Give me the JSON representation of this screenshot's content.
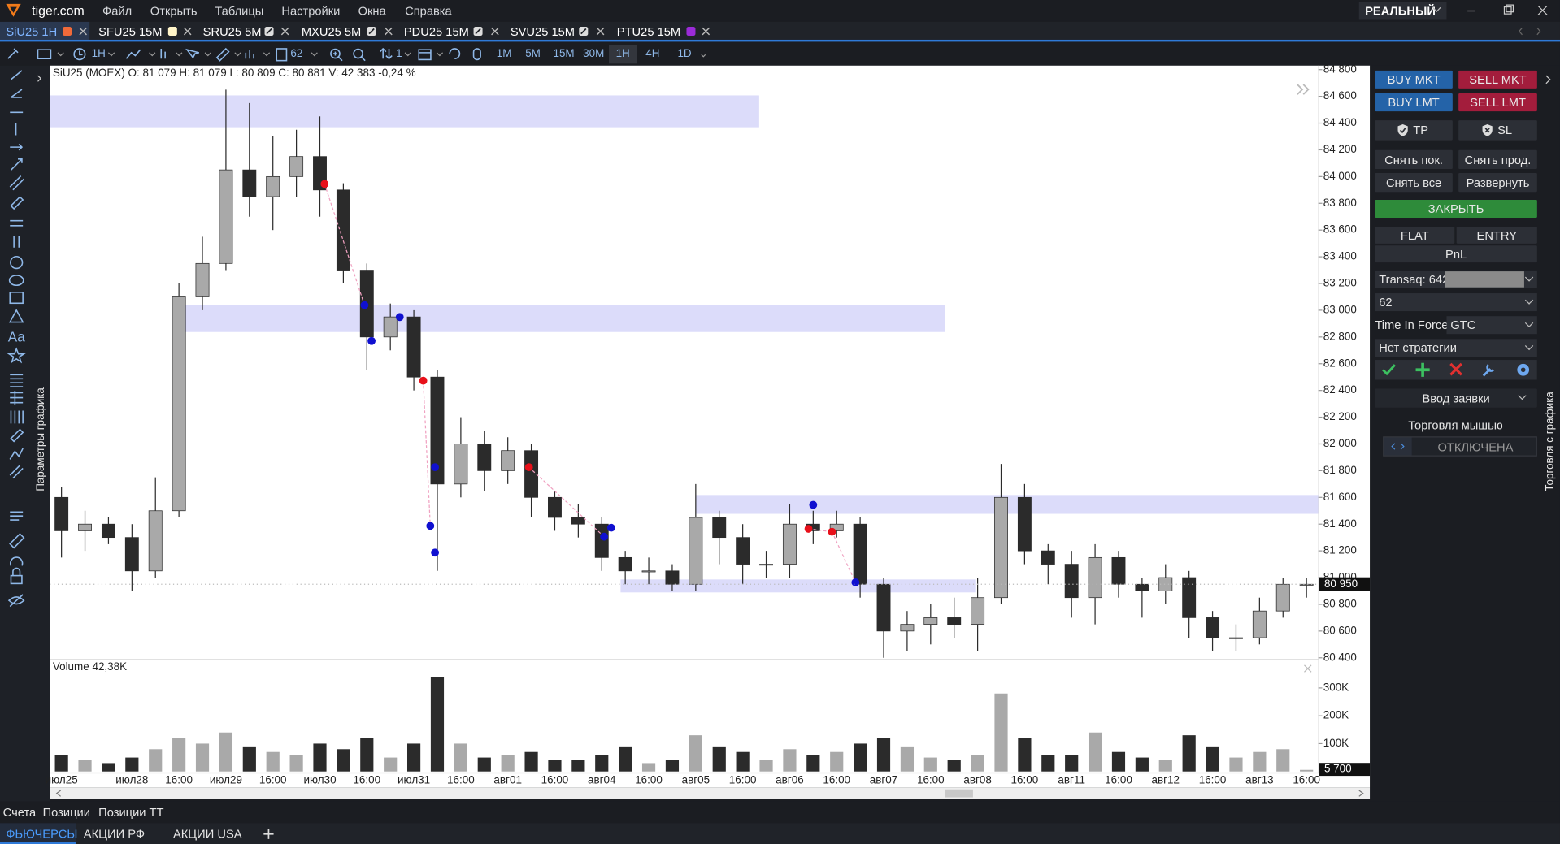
{
  "ui": {
    "brand": "tiger.com",
    "menu": [
      "Файл",
      "Открыть",
      "Таблицы",
      "Настройки",
      "Окна",
      "Справка"
    ],
    "account_mode": "РЕАЛЬНЫЙ",
    "tabs": [
      "SiU25 1H",
      "SFU25 15M",
      "SRU25 5M",
      "MXU25 5M",
      "PDU25 15M",
      "SVU25 15M",
      "PTU25 15M"
    ],
    "toolbar": {
      "timeframe": "1H",
      "count": "62",
      "lines": "1",
      "periods": [
        "1M",
        "5M",
        "15M",
        "30M",
        "1H",
        "4H",
        "1D"
      ]
    },
    "text_tool": "Aa",
    "left_label": "Параметры графика",
    "right_label": "Торговля с графика",
    "trade": {
      "buy_mkt": "BUY MKT",
      "sell_mkt": "SELL MKT",
      "buy_lmt": "BUY LMT",
      "sell_lmt": "SELL LMT",
      "tp": "TP",
      "sl": "SL",
      "cancel_buy": "Снять пок.",
      "cancel_sell": "Снять прод.",
      "cancel_all": "Снять все",
      "reverse": "Развернуть",
      "close": "ЗАКРЫТЬ",
      "flat": "FLAT",
      "entry": "ENTRY",
      "pnl": "PnL",
      "account": "Transaq: 642",
      "quantity": "62",
      "tif_label": "Time In Force",
      "tif": "GTC",
      "strategy": "Нет стратегии",
      "order_entry": "Ввод заявки",
      "mouse_trading": "Торговля мышью",
      "mouse_state": "ОТКЛЮЧЕНА"
    },
    "bottom_links": [
      "Счета",
      "Позиции",
      "Позиции ТТ"
    ],
    "bottom_tabs": [
      "ФЬЮЧЕРСЫ",
      "АКЦИИ РФ",
      "АКЦИИ USA"
    ]
  },
  "chart_data": {
    "type": "candlestick",
    "header": "SiU25 (MOEX) O: 81 079 H: 81 079 L: 80 809 C: 80 881 V: 42 383 -0,24 %",
    "categories": [
      "июл25",
      null,
      null,
      "июл28",
      null,
      "16:00",
      null,
      "июл29",
      null,
      "16:00",
      null,
      "июл30",
      null,
      "16:00",
      null,
      "июл31",
      null,
      "16:00",
      null,
      "авг01",
      null,
      "16:00",
      null,
      "авг04",
      null,
      "16:00",
      null,
      "авг05",
      null,
      "16:00",
      null,
      "авг06",
      null,
      "16:00",
      null,
      "авг07",
      null,
      "16:00",
      null,
      "авг08",
      null,
      "16:00",
      null,
      "авг11",
      null,
      "16:00",
      null,
      "авг12",
      null,
      "16:00",
      null,
      "авг13",
      null,
      "16:00"
    ],
    "open": [
      81600,
      81350,
      81400,
      81300,
      81050,
      81500,
      83100,
      83350,
      84050,
      83850,
      84000,
      84150,
      83900,
      83300,
      82800,
      82950,
      82500,
      81700,
      82000,
      81800,
      81950,
      81600,
      81450,
      81400,
      81150,
      81050,
      81050,
      80950,
      81450,
      81300,
      81100,
      81100,
      81400,
      81350,
      81400,
      80950,
      80600,
      80650,
      80700,
      80650,
      80850,
      81600,
      81200,
      81100,
      80850,
      81150,
      80950,
      80900,
      81000,
      80700,
      80550,
      80550,
      80750,
      80950
    ],
    "high": [
      81680,
      81500,
      81450,
      81400,
      81750,
      83200,
      83550,
      84650,
      84550,
      84300,
      84350,
      84450,
      83950,
      83350,
      83050,
      83000,
      82550,
      82200,
      82100,
      82050,
      82000,
      81650,
      81550,
      81450,
      81200,
      81150,
      81100,
      81700,
      81500,
      81400,
      81200,
      81550,
      81500,
      81500,
      81450,
      81000,
      80750,
      80800,
      80850,
      81000,
      81850,
      81700,
      81250,
      81200,
      81250,
      81200,
      81000,
      81100,
      81050,
      80750,
      80650,
      80850,
      81000,
      81000
    ],
    "low": [
      81150,
      81200,
      81250,
      80900,
      81000,
      81450,
      83000,
      83300,
      83700,
      83600,
      83850,
      83700,
      83200,
      82550,
      82700,
      82400,
      81050,
      81600,
      81650,
      81700,
      81450,
      81350,
      81300,
      81050,
      80950,
      80950,
      80900,
      80900,
      81100,
      80950,
      81000,
      81000,
      81250,
      81300,
      80850,
      80400,
      80450,
      80500,
      80550,
      80450,
      80800,
      81100,
      80950,
      80700,
      80650,
      80850,
      80700,
      80800,
      80550,
      80450,
      80450,
      80500,
      80700,
      80850
    ],
    "close": [
      81350,
      81400,
      81300,
      81050,
      81500,
      83100,
      83350,
      84050,
      83850,
      84000,
      84150,
      83900,
      83300,
      82800,
      82950,
      82500,
      81700,
      82000,
      81800,
      81950,
      81600,
      81450,
      81400,
      81150,
      81050,
      81050,
      80950,
      81450,
      81300,
      81100,
      81100,
      81400,
      81350,
      81400,
      80950,
      80600,
      80650,
      80700,
      80650,
      80850,
      81600,
      81200,
      81100,
      80850,
      81150,
      80950,
      80900,
      81000,
      80700,
      80550,
      80550,
      80750,
      80950,
      80950
    ],
    "up_color": "#a9a9a9",
    "down_color": "#2b2b2b",
    "ylim": [
      80390,
      84830
    ],
    "yticks": [
      {
        "value": 80400,
        "label": "80 400"
      },
      {
        "value": 80600,
        "label": "80 600"
      },
      {
        "value": 80800,
        "label": "80 800"
      },
      {
        "value": 81000,
        "label": "81 000"
      },
      {
        "value": 81200,
        "label": "81 200"
      },
      {
        "value": 81400,
        "label": "81 400"
      },
      {
        "value": 81600,
        "label": "81 600"
      },
      {
        "value": 81800,
        "label": "81 800"
      },
      {
        "value": 82000,
        "label": "82 000"
      },
      {
        "value": 82200,
        "label": "82 200"
      },
      {
        "value": 82400,
        "label": "82 400"
      },
      {
        "value": 82600,
        "label": "82 600"
      },
      {
        "value": 82800,
        "label": "82 800"
      },
      {
        "value": 83000,
        "label": "83 000"
      },
      {
        "value": 83200,
        "label": "83 200"
      },
      {
        "value": 83400,
        "label": "83 400"
      },
      {
        "value": 83600,
        "label": "83 600"
      },
      {
        "value": 83800,
        "label": "83 800"
      },
      {
        "value": 84000,
        "label": "84 000"
      },
      {
        "value": 84200,
        "label": "84 200"
      },
      {
        "value": 84400,
        "label": "84 400"
      },
      {
        "value": 84600,
        "label": "84 600"
      },
      {
        "value": 84800,
        "label": "84 800"
      }
    ],
    "last_price": {
      "value": 80950,
      "label": "80 950"
    },
    "xlim": [
      0,
      54
    ],
    "zone_color": "#dcdcfa",
    "zones": [
      {
        "from": 84369,
        "to": 84607,
        "x0": 0,
        "x1": 30.2
      },
      {
        "from": 82837,
        "to": 83038,
        "x0": 5.6,
        "x1": 38.1
      },
      {
        "from": 81477,
        "to": 81618,
        "x0": 27.5,
        "x1": 54
      },
      {
        "from": 80889,
        "to": 80986,
        "x0": 24.3,
        "x1": 39.4
      }
    ],
    "signals": [
      {
        "x": 11.7,
        "price": 83945,
        "color": "#e8101a"
      },
      {
        "x": 13.4,
        "price": 83038,
        "color": "#1010d0"
      },
      {
        "x": 13.7,
        "price": 82770,
        "color": "#1010d0"
      },
      {
        "x": 14.9,
        "price": 82949,
        "color": "#1010d0"
      },
      {
        "x": 15.9,
        "price": 82473,
        "color": "#e8101a"
      },
      {
        "x": 16.2,
        "price": 81387,
        "color": "#1010d0"
      },
      {
        "x": 16.4,
        "price": 81826,
        "color": "#1010d0"
      },
      {
        "x": 16.4,
        "price": 81187,
        "color": "#1010d0"
      },
      {
        "x": 20.4,
        "price": 81826,
        "color": "#e8101a"
      },
      {
        "x": 23.6,
        "price": 81306,
        "color": "#1010d0"
      },
      {
        "x": 23.9,
        "price": 81373,
        "color": "#1010d0"
      },
      {
        "x": 32.5,
        "price": 81544,
        "color": "#1010d0"
      },
      {
        "x": 32.3,
        "price": 81365,
        "color": "#e8101a"
      },
      {
        "x": 33.3,
        "price": 81343,
        "color": "#e8101a"
      },
      {
        "x": 34.3,
        "price": 80964,
        "color": "#1010d0"
      }
    ],
    "volume": {
      "title": "Volume 42,38K",
      "values": [
        60000,
        40000,
        30000,
        50000,
        80000,
        120000,
        100000,
        140000,
        90000,
        70000,
        60000,
        100000,
        80000,
        120000,
        50000,
        100000,
        340000,
        100000,
        50000,
        60000,
        70000,
        40000,
        40000,
        60000,
        90000,
        30000,
        40000,
        130000,
        90000,
        70000,
        40000,
        80000,
        60000,
        70000,
        100000,
        120000,
        90000,
        50000,
        40000,
        60000,
        280000,
        120000,
        60000,
        60000,
        140000,
        70000,
        50000,
        40000,
        130000,
        90000,
        50000,
        70000,
        80000,
        5700
      ],
      "ylim": [
        0,
        400000
      ],
      "yticks": [
        {
          "value": 100000,
          "label": "100K"
        },
        {
          "value": 200000,
          "label": "200K"
        },
        {
          "value": 300000,
          "label": "300K"
        }
      ],
      "last": {
        "value": 5700,
        "label": "5 700"
      }
    }
  }
}
